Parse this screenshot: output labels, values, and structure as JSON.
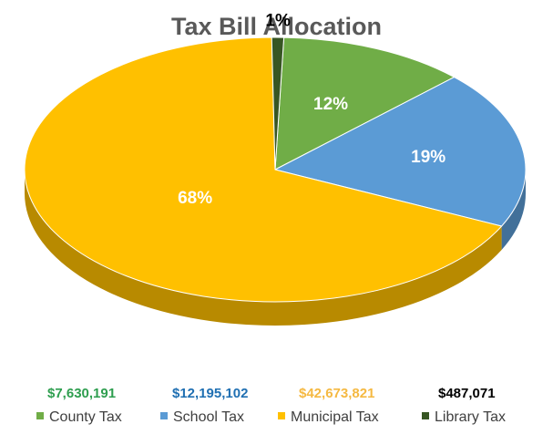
{
  "chart_data": {
    "type": "pie",
    "title": "Tax Bill Allocation",
    "labels": [
      "County Tax",
      "School Tax",
      "Municipal Tax",
      "Library Tax"
    ],
    "amounts": [
      "$7,630,191",
      "$12,195,102",
      "$42,673,821",
      "$487,071"
    ],
    "values": [
      7630191,
      12195102,
      42673821,
      487071
    ],
    "percent_labels": [
      "12%",
      "19%",
      "68%",
      "1%"
    ],
    "colors": [
      "#70AD47",
      "#5B9BD5",
      "#FFC000",
      "#375623"
    ],
    "amount_colors": [
      "#2E9E4F",
      "#1F6FB2",
      "#F5B942",
      "#000000"
    ],
    "legend_position": "bottom",
    "style": "3d-pie"
  }
}
